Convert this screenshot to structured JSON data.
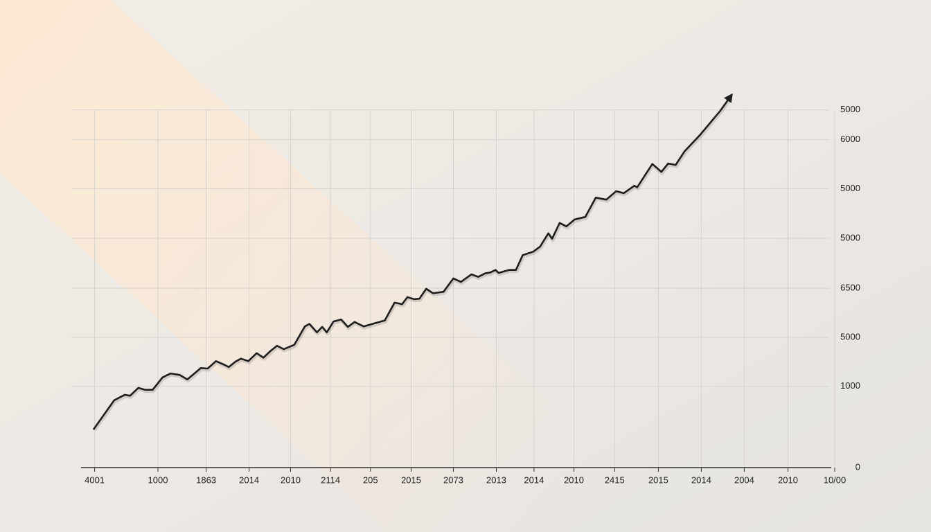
{
  "chart_data": {
    "type": "line",
    "x": [
      1.7,
      4.4,
      5.8,
      6.5,
      7.6,
      8.5,
      9.5,
      10.8,
      11.9,
      13.1,
      14.1,
      15.9,
      16.8,
      17.9,
      19.1,
      19.6,
      20.5,
      21.2,
      22.2,
      23.3,
      24.2,
      25.1,
      26.0,
      26.9,
      28.3,
      29.7,
      30.3,
      31.3,
      32.0,
      32.6,
      33.5,
      34.5,
      35.4,
      36.3,
      37.5,
      38.9,
      40.3,
      41.6,
      42.6,
      43.3,
      44.2,
      44.9,
      45.8,
      46.7,
      48.1,
      49.4,
      50.4,
      51.8,
      52.7,
      53.6,
      54.3,
      55.0,
      55.4,
      56.8,
      57.7,
      58.6,
      60.0,
      60.9,
      62.0,
      62.5,
      63.5,
      64.4,
      65.5,
      66.9,
      68.3,
      69.7,
      71.0,
      72.0,
      73.4,
      73.8,
      75.8,
      77.0,
      77.9,
      78.9,
      80.1,
      82.1,
      84.8,
      86.2
    ],
    "series": [
      {
        "color": "#1e1e1e",
        "values": [
          0.78,
          1.36,
          1.47,
          1.45,
          1.61,
          1.57,
          1.57,
          1.82,
          1.9,
          1.87,
          1.78,
          2.01,
          2.0,
          2.15,
          2.07,
          2.03,
          2.14,
          2.2,
          2.15,
          2.31,
          2.22,
          2.35,
          2.46,
          2.39,
          2.48,
          2.85,
          2.9,
          2.73,
          2.84,
          2.73,
          2.95,
          2.99,
          2.84,
          2.94,
          2.85,
          2.91,
          2.97,
          3.33,
          3.3,
          3.44,
          3.4,
          3.41,
          3.61,
          3.52,
          3.55,
          3.82,
          3.75,
          3.9,
          3.85,
          3.92,
          3.94,
          3.99,
          3.93,
          3.99,
          3.99,
          4.29,
          4.36,
          4.46,
          4.73,
          4.62,
          4.94,
          4.87,
          5.01,
          5.06,
          5.45,
          5.41,
          5.58,
          5.54,
          5.69,
          5.66,
          6.13,
          5.97,
          6.14,
          6.11,
          6.39,
          6.71,
          7.2,
          7.5
        ]
      }
    ],
    "xlim": [
      0,
      100
    ],
    "xticks": [
      {
        "value": 1.8,
        "label": "4001"
      },
      {
        "value": 10.2,
        "label": "1000"
      },
      {
        "value": 16.6,
        "label": "1863"
      },
      {
        "value": 22.3,
        "label": "2014"
      },
      {
        "value": 27.8,
        "label": "2010"
      },
      {
        "value": 33.1,
        "label": "2114"
      },
      {
        "value": 38.4,
        "label": "205"
      },
      {
        "value": 43.8,
        "label": "2015"
      },
      {
        "value": 49.4,
        "label": "2073"
      },
      {
        "value": 55.1,
        "label": "2013"
      },
      {
        "value": 60.1,
        "label": "2014"
      },
      {
        "value": 65.4,
        "label": "2010"
      },
      {
        "value": 70.8,
        "label": "2415"
      },
      {
        "value": 76.6,
        "label": "2015"
      },
      {
        "value": 82.3,
        "label": "2014"
      },
      {
        "value": 88.0,
        "label": "2004"
      },
      {
        "value": 93.8,
        "label": "2010"
      },
      {
        "value": 100,
        "label": "10/00"
      }
    ],
    "ylim": [
      0,
      7.5
    ],
    "yticks": [
      0,
      {
        "value": 1.64,
        "label": "1000"
      },
      {
        "value": 2.63,
        "label": "5000"
      },
      {
        "value": 3.62,
        "label": "6500"
      },
      {
        "value": 4.63,
        "label": "5000"
      },
      {
        "value": 5.63,
        "label": "5000"
      },
      {
        "value": 6.62,
        "label": "6000"
      },
      {
        "value": 7.22,
        "label": "5000"
      }
    ],
    "grid": true
  }
}
